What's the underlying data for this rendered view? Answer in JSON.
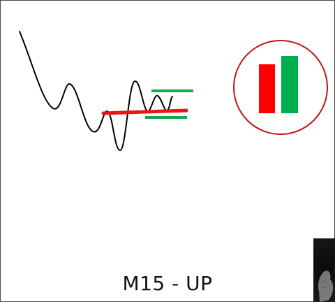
{
  "caption": "M15 - UP",
  "colors": {
    "price_line": "#000000",
    "support_line": "#e8161b",
    "range_lines": "#1aa84e",
    "bearish_candle": "#ff0000",
    "bullish_candle": "#00b050",
    "circle_border": "#c0141b",
    "frame_border": "#4a4a4a"
  },
  "icons": {
    "candles": "candlestick-pair-icon",
    "video": "presenter-video-thumbnail"
  }
}
